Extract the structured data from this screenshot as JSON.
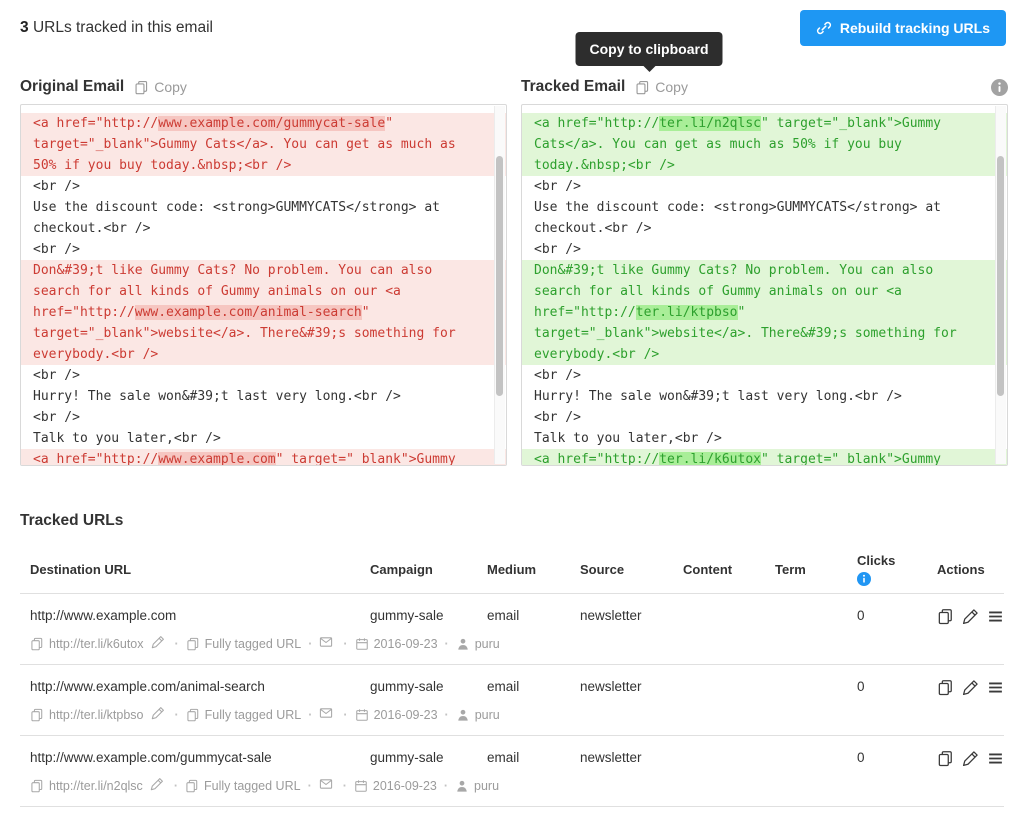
{
  "header": {
    "count": "3",
    "count_label": "URLs tracked in this email",
    "rebuild_button": "Rebuild tracking URLs"
  },
  "tooltip": {
    "text": "Copy to clipboard"
  },
  "panels": {
    "original": {
      "title": "Original Email",
      "copy_label": "Copy",
      "lines": [
        {
          "b": 1,
          "s": [
            [
              "<a href=\"http://",
              0
            ],
            [
              "www.example.com/gummycat-sale",
              1
            ],
            [
              "\"",
              0
            ]
          ]
        },
        {
          "b": 1,
          "s": [
            [
              "target=\"_blank\">Gummy Cats</a>. You can get as much as",
              0
            ]
          ]
        },
        {
          "b": 1,
          "s": [
            [
              "50% if you buy today.&nbsp;<br />",
              0
            ]
          ]
        },
        {
          "b": 0,
          "s": [
            [
              "<br />",
              0
            ]
          ]
        },
        {
          "b": 0,
          "s": [
            [
              "Use the discount code: <strong>GUMMYCATS</strong> at",
              0
            ]
          ]
        },
        {
          "b": 0,
          "s": [
            [
              "checkout.<br />",
              0
            ]
          ]
        },
        {
          "b": 0,
          "s": [
            [
              "<br />",
              0
            ]
          ]
        },
        {
          "b": 1,
          "s": [
            [
              "Don&#39;t like Gummy Cats? No problem. You can also",
              0
            ]
          ]
        },
        {
          "b": 1,
          "s": [
            [
              "search for all kinds of Gummy animals on our <a",
              0
            ]
          ]
        },
        {
          "b": 1,
          "s": [
            [
              "href=\"http://",
              0
            ],
            [
              "www.example.com/animal-search",
              1
            ],
            [
              "\"",
              0
            ]
          ]
        },
        {
          "b": 1,
          "s": [
            [
              "target=\"_blank\">website</a>. There&#39;s something for",
              0
            ]
          ]
        },
        {
          "b": 1,
          "s": [
            [
              "everybody.<br />",
              0
            ]
          ]
        },
        {
          "b": 0,
          "s": [
            [
              "<br />",
              0
            ]
          ]
        },
        {
          "b": 0,
          "s": [
            [
              "Hurry! The sale won&#39;t last very long.<br />",
              0
            ]
          ]
        },
        {
          "b": 0,
          "s": [
            [
              "<br />",
              0
            ]
          ]
        },
        {
          "b": 0,
          "s": [
            [
              "Talk to you later,<br />",
              0
            ]
          ]
        },
        {
          "b": 1,
          "s": [
            [
              "<a href=\"http://",
              0
            ],
            [
              "www.example.com",
              1
            ],
            [
              "\" target=\"_blank\">Gummy",
              0
            ]
          ]
        }
      ]
    },
    "tracked": {
      "title": "Tracked Email",
      "copy_label": "Copy",
      "lines": [
        {
          "b": 1,
          "s": [
            [
              "<a href=\"http://",
              0
            ],
            [
              "ter.li/n2qlsc",
              1
            ],
            [
              "\" target=\"_blank\">Gummy",
              0
            ]
          ]
        },
        {
          "b": 1,
          "s": [
            [
              "Cats</a>. You can get as much as 50% if you buy",
              0
            ]
          ]
        },
        {
          "b": 1,
          "s": [
            [
              "today.&nbsp;<br />",
              0
            ]
          ]
        },
        {
          "b": 0,
          "s": [
            [
              "<br />",
              0
            ]
          ]
        },
        {
          "b": 0,
          "s": [
            [
              "Use the discount code: <strong>GUMMYCATS</strong> at",
              0
            ]
          ]
        },
        {
          "b": 0,
          "s": [
            [
              "checkout.<br />",
              0
            ]
          ]
        },
        {
          "b": 0,
          "s": [
            [
              "<br />",
              0
            ]
          ]
        },
        {
          "b": 1,
          "s": [
            [
              "Don&#39;t like Gummy Cats? No problem. You can also",
              0
            ]
          ]
        },
        {
          "b": 1,
          "s": [
            [
              "search for all kinds of Gummy animals on our <a",
              0
            ]
          ]
        },
        {
          "b": 1,
          "s": [
            [
              "href=\"http://",
              0
            ],
            [
              "ter.li/ktpbso",
              1
            ],
            [
              "\"",
              0
            ]
          ]
        },
        {
          "b": 1,
          "s": [
            [
              "target=\"_blank\">website</a>. There&#39;s something for",
              0
            ]
          ]
        },
        {
          "b": 1,
          "s": [
            [
              "everybody.<br />",
              0
            ]
          ]
        },
        {
          "b": 0,
          "s": [
            [
              "<br />",
              0
            ]
          ]
        },
        {
          "b": 0,
          "s": [
            [
              "Hurry! The sale won&#39;t last very long.<br />",
              0
            ]
          ]
        },
        {
          "b": 0,
          "s": [
            [
              "<br />",
              0
            ]
          ]
        },
        {
          "b": 0,
          "s": [
            [
              "Talk to you later,<br />",
              0
            ]
          ]
        },
        {
          "b": 1,
          "s": [
            [
              "<a href=\"http://",
              0
            ],
            [
              "ter.li/k6utox",
              1
            ],
            [
              "\" target=\"_blank\">Gummy",
              0
            ]
          ]
        }
      ]
    }
  },
  "table": {
    "title": "Tracked URLs",
    "columns": [
      "Destination URL",
      "Campaign",
      "Medium",
      "Source",
      "Content",
      "Term",
      "Clicks",
      "Actions"
    ],
    "rows": [
      {
        "destination": "http://www.example.com",
        "campaign": "gummy-sale",
        "medium": "email",
        "source": "newsletter",
        "content": "",
        "term": "",
        "clicks": "0",
        "short_url": "http://ter.li/k6utox",
        "tag_status": "Fully tagged URL",
        "date": "2016-09-23",
        "user": "puru"
      },
      {
        "destination": "http://www.example.com/animal-search",
        "campaign": "gummy-sale",
        "medium": "email",
        "source": "newsletter",
        "content": "",
        "term": "",
        "clicks": "0",
        "short_url": "http://ter.li/ktpbso",
        "tag_status": "Fully tagged URL",
        "date": "2016-09-23",
        "user": "puru"
      },
      {
        "destination": "http://www.example.com/gummycat-sale",
        "campaign": "gummy-sale",
        "medium": "email",
        "source": "newsletter",
        "content": "",
        "term": "",
        "clicks": "0",
        "short_url": "http://ter.li/n2qlsc",
        "tag_status": "Fully tagged URL",
        "date": "2016-09-23",
        "user": "puru"
      }
    ]
  },
  "colors": {
    "accent_blue": "#1e97f3",
    "tooltip_bg": "#2d2d2d",
    "diff_removed_text": "#cc3b33",
    "diff_removed_bg": "#fbe7e4",
    "diff_removed_hl": "#f6c6c1",
    "diff_added_text": "#2da02d",
    "diff_added_bg": "#e1f6d7",
    "diff_added_hl": "#a9ee98",
    "info_gray": "#a2a2a2",
    "info_blue": "#2196f3"
  }
}
